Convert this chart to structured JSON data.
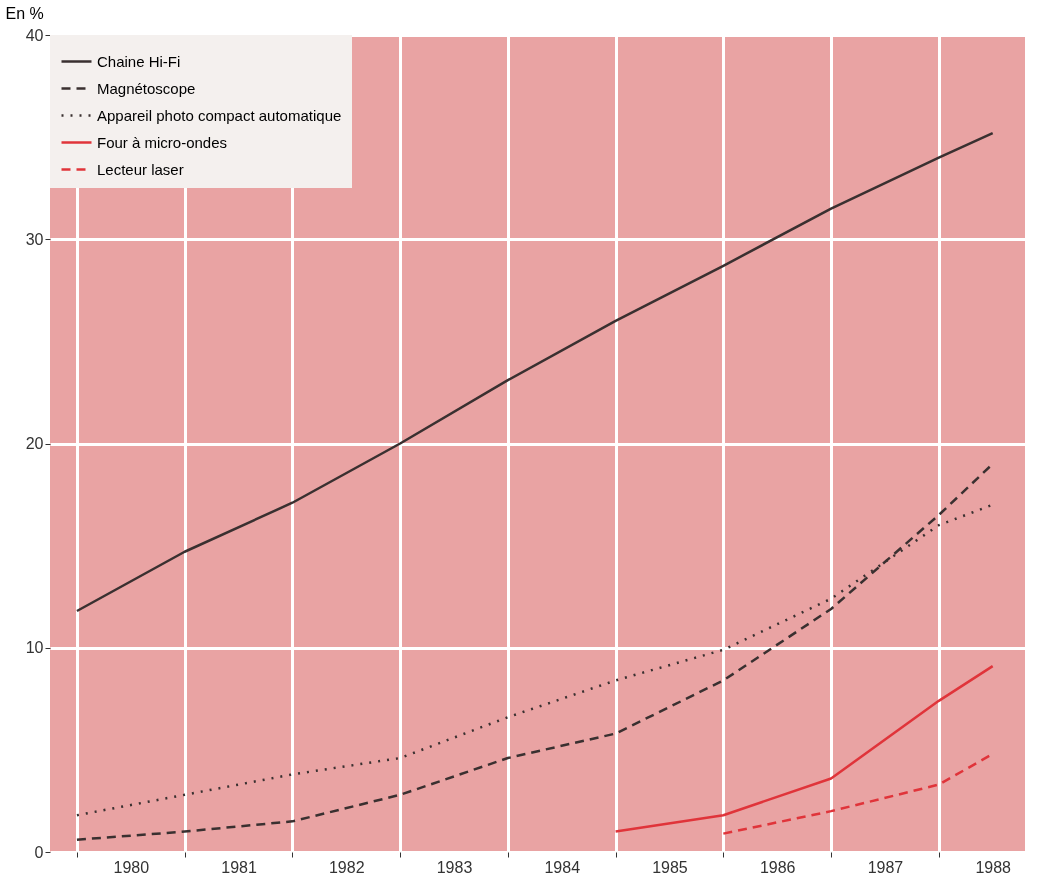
{
  "chart_data": {
    "type": "line",
    "ylabel": "En %",
    "xlim": [
      1979.25,
      1988.3
    ],
    "ylim": [
      0,
      40
    ],
    "yticks": [
      0,
      10,
      20,
      30,
      40
    ],
    "xticks": [
      {
        "value": 1979.5,
        "label": null
      },
      {
        "value": 1980,
        "label": "1980"
      },
      {
        "value": 1980.5,
        "label": null
      },
      {
        "value": 1981,
        "label": "1981"
      },
      {
        "value": 1981.5,
        "label": null
      },
      {
        "value": 1982,
        "label": "1982"
      },
      {
        "value": 1982.5,
        "label": null
      },
      {
        "value": 1983,
        "label": "1983"
      },
      {
        "value": 1983.5,
        "label": null
      },
      {
        "value": 1984,
        "label": "1984"
      },
      {
        "value": 1984.5,
        "label": null
      },
      {
        "value": 1985,
        "label": "1985"
      },
      {
        "value": 1985.5,
        "label": null
      },
      {
        "value": 1986,
        "label": "1986"
      },
      {
        "value": 1986.5,
        "label": null
      },
      {
        "value": 1987,
        "label": "1987"
      },
      {
        "value": 1987.5,
        "label": null
      },
      {
        "value": 1988,
        "label": "1988"
      }
    ],
    "grid": true,
    "legend": "top left",
    "marker": "none",
    "series": [
      {
        "name": "Chaine Hi-Fi",
        "color": "#3a3030",
        "line_style": "solid",
        "x": [
          1979.5,
          1980.5,
          1981.5,
          1982.5,
          1983.5,
          1984.5,
          1985.5,
          1986.5,
          1987.5,
          1988
        ],
        "values": [
          11.8,
          14.7,
          17.1,
          20,
          23.1,
          26,
          28.7,
          31.5,
          34,
          35.2
        ]
      },
      {
        "name": "Magnétoscope",
        "color": "#3a3030",
        "line_style": "dashed",
        "x": [
          1979.5,
          1980.5,
          1981.5,
          1982.5,
          1983.5,
          1984.5,
          1985.5,
          1986.5,
          1987.5,
          1988
        ],
        "values": [
          0.6,
          1,
          1.5,
          2.8,
          4.6,
          5.8,
          8.4,
          11.9,
          16.5,
          19
        ]
      },
      {
        "name": "Appareil photo compact automatique",
        "color": "#3a3030",
        "line_style": "dotted",
        "x": [
          1979.5,
          1980.5,
          1981.5,
          1982.5,
          1983.5,
          1984.5,
          1985.5,
          1986.5,
          1987.5,
          1988
        ],
        "values": [
          1.8,
          2.8,
          3.8,
          4.6,
          6.6,
          8.4,
          9.9,
          12.4,
          16,
          17
        ]
      },
      {
        "name": "Four à micro-ondes",
        "color": "#e0343a",
        "line_style": "solid",
        "x": [
          1984.5,
          1985.5,
          1986.5,
          1987.5,
          1988
        ],
        "values": [
          1,
          1.8,
          3.6,
          7.4,
          9.1
        ]
      },
      {
        "name": "Lecteur laser",
        "color": "#e0343a",
        "line_style": "dashed",
        "x": [
          1985.5,
          1986.5,
          1987.5,
          1988
        ],
        "values": [
          0.9,
          2,
          3.3,
          4.8
        ]
      }
    ]
  }
}
